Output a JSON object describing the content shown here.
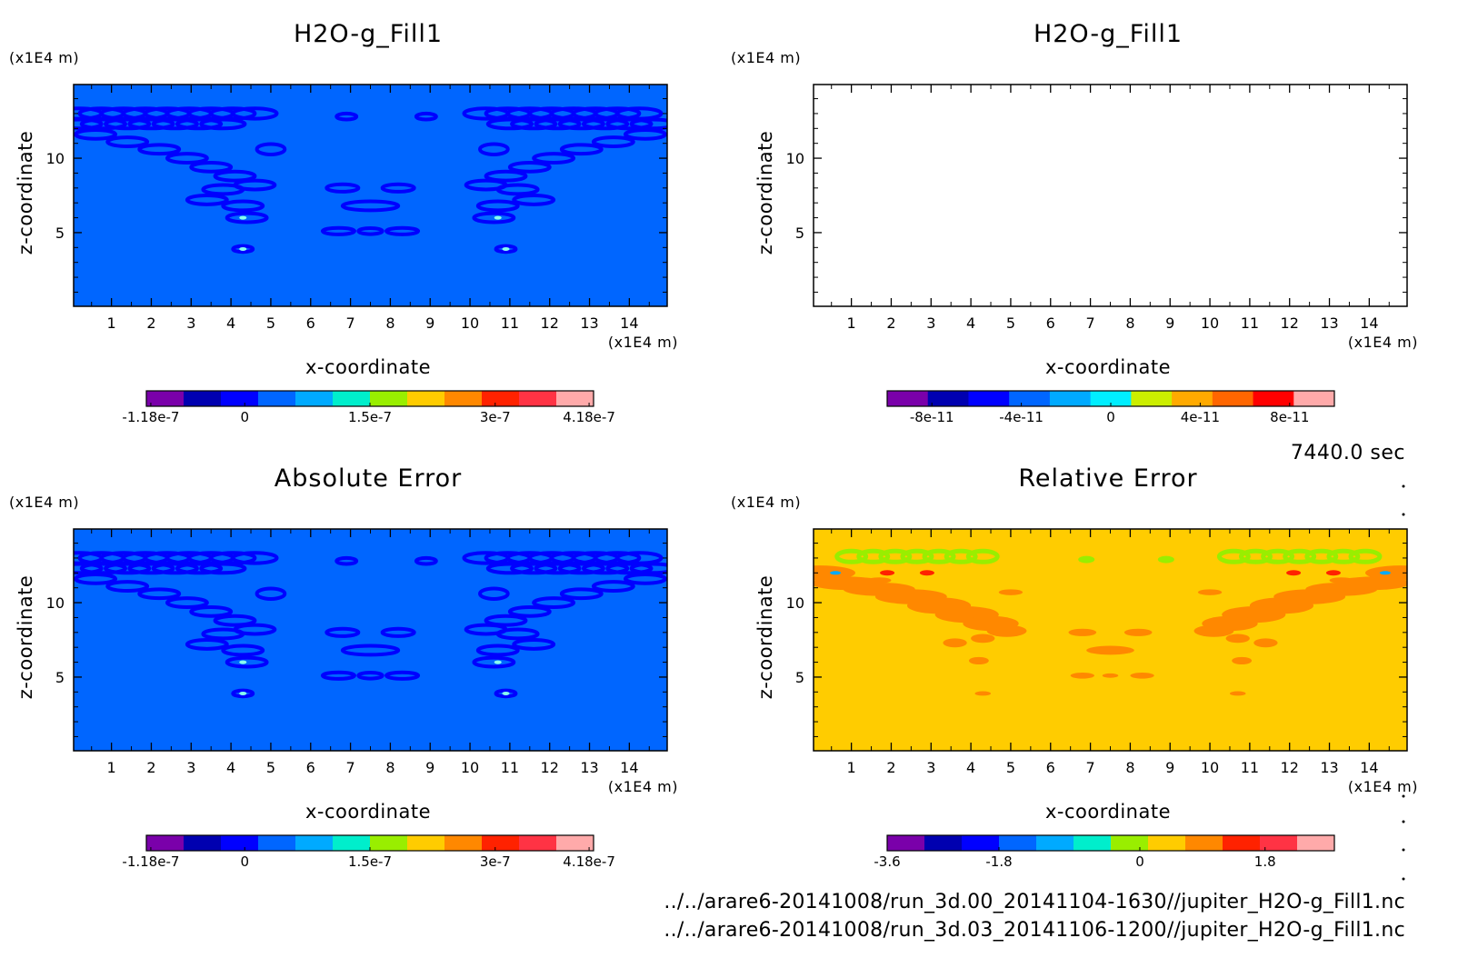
{
  "chart_data": [
    {
      "type": "heatmap",
      "title": "H2O-g_Fill1",
      "xlabel": "x-coordinate",
      "ylabel": "z-coordinate",
      "x_unit": "(x1E4 m)",
      "y_unit": "(x1E4 m)",
      "xlim": [
        0.05,
        14.95
      ],
      "ylim": [
        0.05,
        14.95
      ],
      "x_ticks": [
        "1",
        "2",
        "3",
        "4",
        "5",
        "6",
        "7",
        "8",
        "9",
        "10",
        "11",
        "12",
        "13",
        "14"
      ],
      "y_ticks": [
        "5",
        "10"
      ],
      "background_color": "#0066ff",
      "pattern_color": "#0000ff",
      "pattern": "scattered contours along V-shaped band from upper corners toward center",
      "colorbar": {
        "colors": [
          "#7a00aa",
          "#0000b0",
          "#0000ff",
          "#0066ff",
          "#00aaff",
          "#00eecc",
          "#99ee00",
          "#ffcc00",
          "#ff8800",
          "#ff2200",
          "#ff3344",
          "#ffaaaa"
        ],
        "tick_labels": [
          "-1.18e-7",
          "0",
          "1.5e-7",
          "3e-7",
          "4.18e-7"
        ]
      }
    },
    {
      "type": "heatmap",
      "title": "H2O-g_Fill1",
      "xlabel": "x-coordinate",
      "ylabel": "z-coordinate",
      "x_unit": "(x1E4 m)",
      "y_unit": "(x1E4 m)",
      "xlim": [
        0.05,
        14.95
      ],
      "ylim": [
        0.05,
        14.95
      ],
      "x_ticks": [
        "1",
        "2",
        "3",
        "4",
        "5",
        "6",
        "7",
        "8",
        "9",
        "10",
        "11",
        "12",
        "13",
        "14"
      ],
      "y_ticks": [
        "5",
        "10"
      ],
      "background_color": "#ffffff",
      "pattern": "none",
      "colorbar": {
        "colors": [
          "#7a00aa",
          "#0000b0",
          "#0000ff",
          "#0066ff",
          "#00aaff",
          "#00eeff",
          "#ccee00",
          "#ffaa00",
          "#ff6600",
          "#ff0000",
          "#ffaaaa"
        ],
        "tick_labels": [
          "-8e-11",
          "-4e-11",
          "0",
          "4e-11",
          "8e-11"
        ]
      }
    },
    {
      "type": "heatmap",
      "title": "Absolute Error",
      "xlabel": "x-coordinate",
      "ylabel": "z-coordinate",
      "x_unit": "(x1E4 m)",
      "y_unit": "(x1E4 m)",
      "xlim": [
        0.05,
        14.95
      ],
      "ylim": [
        0.05,
        14.95
      ],
      "x_ticks": [
        "1",
        "2",
        "3",
        "4",
        "5",
        "6",
        "7",
        "8",
        "9",
        "10",
        "11",
        "12",
        "13",
        "14"
      ],
      "y_ticks": [
        "5",
        "10"
      ],
      "background_color": "#0066ff",
      "pattern_color": "#0000ff",
      "pattern": "scattered contours along V-shaped band from upper corners toward center",
      "colorbar": {
        "colors": [
          "#7a00aa",
          "#0000b0",
          "#0000ff",
          "#0066ff",
          "#00aaff",
          "#00eecc",
          "#99ee00",
          "#ffcc00",
          "#ff8800",
          "#ff2200",
          "#ff3344",
          "#ffaaaa"
        ],
        "tick_labels": [
          "-1.18e-7",
          "0",
          "1.5e-7",
          "3e-7",
          "4.18e-7"
        ]
      }
    },
    {
      "type": "heatmap",
      "title": "Relative Error",
      "xlabel": "x-coordinate",
      "ylabel": "z-coordinate",
      "x_unit": "(x1E4 m)",
      "y_unit": "(x1E4 m)",
      "xlim": [
        0.05,
        14.95
      ],
      "ylim": [
        0.05,
        14.95
      ],
      "x_ticks": [
        "1",
        "2",
        "3",
        "4",
        "5",
        "6",
        "7",
        "8",
        "9",
        "10",
        "11",
        "12",
        "13",
        "14"
      ],
      "y_ticks": [
        "5",
        "10"
      ],
      "background_color": "#ffcc00",
      "pattern_color": "#ff8800",
      "top_band_color": "#99ee00",
      "pattern": "orange V-shaped band from upper corners toward center with green band near top",
      "colorbar": {
        "colors": [
          "#7a00aa",
          "#0000b0",
          "#0000ff",
          "#0066ff",
          "#00aaff",
          "#00eecc",
          "#99ee00",
          "#ffcc00",
          "#ff8800",
          "#ff2200",
          "#ff3344",
          "#ffaaaa"
        ],
        "tick_labels": [
          "-3.6",
          "-1.8",
          "0",
          "1.8"
        ]
      }
    }
  ],
  "time_label": "7440.0 sec",
  "file_paths": [
    "../../arare6-20141008/run_3d.00_20141104-1630//jupiter_H2O-g_Fill1.nc",
    "../../arare6-20141008/run_3d.03_20141106-1200//jupiter_H2O-g_Fill1.nc"
  ]
}
